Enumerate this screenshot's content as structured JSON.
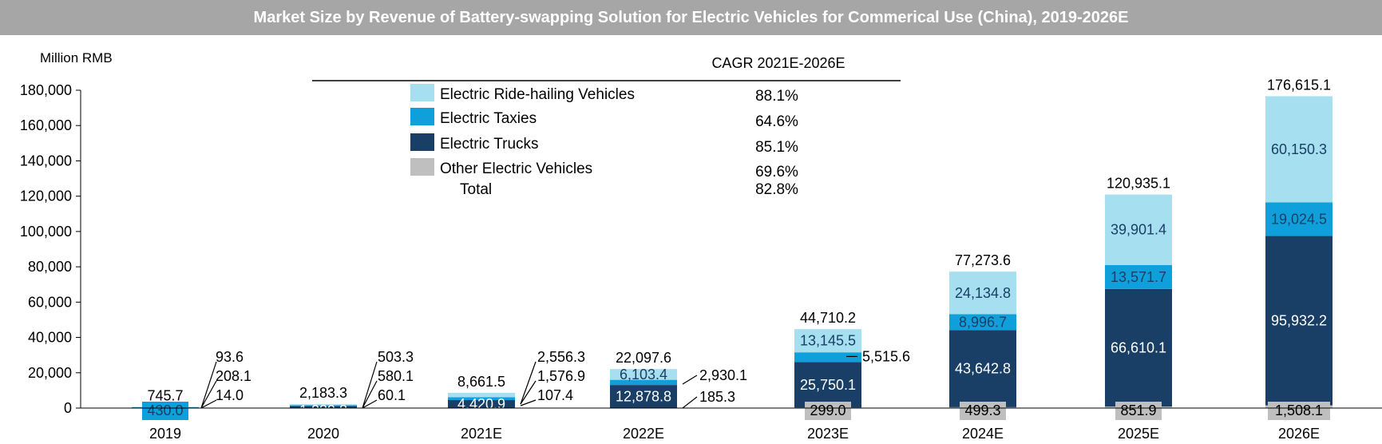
{
  "chart_data": {
    "type": "bar",
    "stacked": true,
    "title": "Market Size by Revenue of Battery-swapping Solution for Electric Vehicles for Commerical Use (China), 2019-2026E",
    "ylabel": "Million RMB",
    "xlabel": "",
    "ylim": [
      0,
      180000
    ],
    "yticks": [
      0,
      20000,
      40000,
      60000,
      80000,
      100000,
      120000,
      140000,
      160000,
      180000
    ],
    "ytick_labels": [
      "0",
      "20,000",
      "40,000",
      "60,000",
      "80,000",
      "100,000",
      "120,000",
      "140,000",
      "160,000",
      "180,000"
    ],
    "categories": [
      "2019",
      "2020",
      "2021E",
      "2022E",
      "2023E",
      "2024E",
      "2025E",
      "2026E"
    ],
    "series": [
      {
        "name": "Other Electric Vehicles",
        "color": "#bfbfbf",
        "values": [
          14.0,
          60.1,
          107.4,
          185.3,
          299.0,
          499.3,
          851.9,
          1508.1
        ],
        "labels": [
          "14.0",
          "60.1",
          "107.4",
          "185.3",
          "299.0",
          "499.3",
          "851.9",
          "1,508.1"
        ]
      },
      {
        "name": "Electric Trucks",
        "color": "#1a3f66",
        "values": [
          208.1,
          1039.8,
          4420.9,
          12878.8,
          25750.1,
          43642.8,
          66610.1,
          95932.2
        ],
        "labels": [
          "208.1",
          "1,039.8",
          "4,420.9",
          "12,878.8",
          "25,750.1",
          "43,642.8",
          "66,610.1",
          "95,932.2"
        ]
      },
      {
        "name": "Electric Taxies",
        "color": "#0fa0dc",
        "values": [
          430.0,
          580.1,
          1576.9,
          2930.1,
          5515.6,
          8996.7,
          13571.7,
          19024.5
        ],
        "labels": [
          "430.0",
          "580.1",
          "1,576.9",
          "2,930.1",
          "5,515.6",
          "8,996.7",
          "13,571.7",
          "19,024.5"
        ]
      },
      {
        "name": "Electric Ride-hailing Vehicles",
        "color": "#a6dff0",
        "values": [
          93.6,
          503.3,
          2556.3,
          6103.4,
          13145.5,
          24134.8,
          39901.4,
          60150.3
        ],
        "labels": [
          "93.6",
          "503.3",
          "2,556.3",
          "6,103.4",
          "13,145.5",
          "24,134.8",
          "39,901.4",
          "60,150.3"
        ]
      }
    ],
    "totals": [
      745.7,
      2183.3,
      8661.5,
      22097.6,
      44710.2,
      77273.6,
      120935.1,
      176615.1
    ],
    "total_labels": [
      "745.7",
      "2,183.3",
      "8,661.5",
      "22,097.6",
      "44,710.2",
      "77,273.6",
      "120,935.1",
      "176,615.1"
    ],
    "legend": {
      "header": "CAGR 2021E-2026E",
      "entries": [
        {
          "name": "Electric Ride-hailing Vehicles",
          "color": "#a6dff0",
          "cagr": "88.1%"
        },
        {
          "name": "Electric Taxies",
          "color": "#0fa0dc",
          "cagr": "64.6%"
        },
        {
          "name": "Electric Trucks",
          "color": "#1a3f66",
          "cagr": "85.1%"
        },
        {
          "name": "Other Electric Vehicles",
          "color": "#bfbfbf",
          "cagr": "69.6%"
        }
      ],
      "total_label": "Total",
      "total_cagr": "82.8%"
    }
  }
}
